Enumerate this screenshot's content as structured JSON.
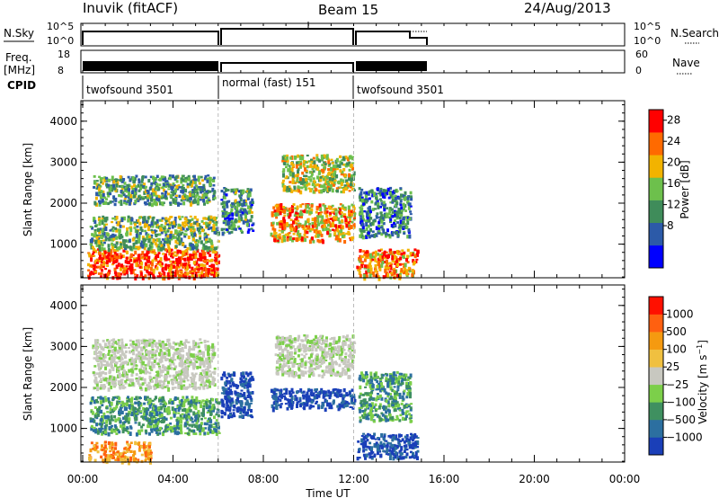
{
  "header": {
    "station": "Inuvik (fitACF)",
    "beam": "Beam 15",
    "date": "24/Aug/2013"
  },
  "noise_panel": {
    "left_label": "N.Sky",
    "left_ticks": [
      "10^5",
      "10^0"
    ],
    "right_ticks": [
      "10^5",
      "10^0"
    ],
    "right_label": "N.Search"
  },
  "freq_panel": {
    "left_label_line1": "Freq.",
    "left_label_line2": "[MHz]",
    "left_ticks": [
      "18",
      "8"
    ],
    "right_ticks": [
      "60",
      "0"
    ],
    "right_label": "Nave"
  },
  "cpid": {
    "label": "CPID",
    "segments": [
      {
        "name": "twofsound 3501",
        "start_hour": 0.0,
        "end_hour": 6.0
      },
      {
        "name": "normal (fast) 151",
        "start_hour": 6.0,
        "end_hour": 12.0
      },
      {
        "name": "twofsound 3501",
        "start_hour": 12.0,
        "end_hour": 15.3
      }
    ]
  },
  "chart_data": [
    {
      "type": "heatmap",
      "quantity": "power",
      "ylabel": "Slant Range [km]",
      "yticks": [
        "1000",
        "2000",
        "3000",
        "4000"
      ],
      "ylim": [
        180,
        4500
      ],
      "xlim": [
        0,
        24
      ],
      "colorbar": {
        "label": "Power [dB]",
        "ticks": [
          "8",
          "12",
          "16",
          "20",
          "24",
          "28"
        ],
        "range": [
          0,
          30
        ],
        "colors": [
          "#0000ff",
          "#2c5aa8",
          "#3f8c5a",
          "#6dc04c",
          "#f2b300",
          "#ff6a00",
          "#ff0000"
        ]
      },
      "regions": [
        {
          "x": [
            0.2,
            6.0
          ],
          "y": [
            200,
            900
          ],
          "level": 0.85
        },
        {
          "x": [
            0.3,
            6.0
          ],
          "y": [
            900,
            1700
          ],
          "level": 0.45
        },
        {
          "x": [
            0.4,
            5.8
          ],
          "y": [
            2000,
            2700
          ],
          "level": 0.4
        },
        {
          "x": [
            6.1,
            7.5
          ],
          "y": [
            1300,
            2400
          ],
          "level": 0.35
        },
        {
          "x": [
            8.3,
            12.0
          ],
          "y": [
            1100,
            2000
          ],
          "level": 0.7
        },
        {
          "x": [
            8.8,
            12.0
          ],
          "y": [
            2300,
            3200
          ],
          "level": 0.55
        },
        {
          "x": [
            12.1,
            14.8
          ],
          "y": [
            200,
            900
          ],
          "level": 0.75
        },
        {
          "x": [
            12.2,
            14.5
          ],
          "y": [
            1200,
            2400
          ],
          "level": 0.3
        }
      ]
    },
    {
      "type": "heatmap",
      "quantity": "velocity",
      "ylabel": "Slant Range [km]",
      "yticks": [
        "1000",
        "2000",
        "3000",
        "4000"
      ],
      "ylim": [
        180,
        4500
      ],
      "xlim": [
        0,
        24
      ],
      "xlabel": "Time UT",
      "xticks": [
        "00:00",
        "04:00",
        "08:00",
        "12:00",
        "16:00",
        "20:00",
        "00:00"
      ],
      "colorbar": {
        "label": "Velocity [m s^-1]",
        "ticks": [
          "1000",
          "500",
          "100",
          "25",
          "−25",
          "−100",
          "−500",
          "−1000"
        ],
        "colors": [
          "#1a3fb8",
          "#2c6fa0",
          "#3f9060",
          "#7ccf4a",
          "#c8c8c0",
          "#f0c040",
          "#f59a10",
          "#ff6010",
          "#ff1000"
        ]
      },
      "regions": [
        {
          "x": [
            0.2,
            3.0
          ],
          "y": [
            200,
            700
          ],
          "level": "orange"
        },
        {
          "x": [
            0.3,
            6.0
          ],
          "y": [
            900,
            1800
          ],
          "level": "green"
        },
        {
          "x": [
            0.4,
            5.8
          ],
          "y": [
            2000,
            3200
          ],
          "level": "gray"
        },
        {
          "x": [
            6.1,
            7.5
          ],
          "y": [
            1300,
            2400
          ],
          "level": "blue"
        },
        {
          "x": [
            8.3,
            12.0
          ],
          "y": [
            1500,
            2000
          ],
          "level": "blue"
        },
        {
          "x": [
            8.5,
            12.0
          ],
          "y": [
            2300,
            3300
          ],
          "level": "gray"
        },
        {
          "x": [
            12.1,
            14.8
          ],
          "y": [
            300,
            900
          ],
          "level": "blue"
        },
        {
          "x": [
            12.2,
            14.5
          ],
          "y": [
            1200,
            2400
          ],
          "level": "green"
        }
      ]
    }
  ]
}
